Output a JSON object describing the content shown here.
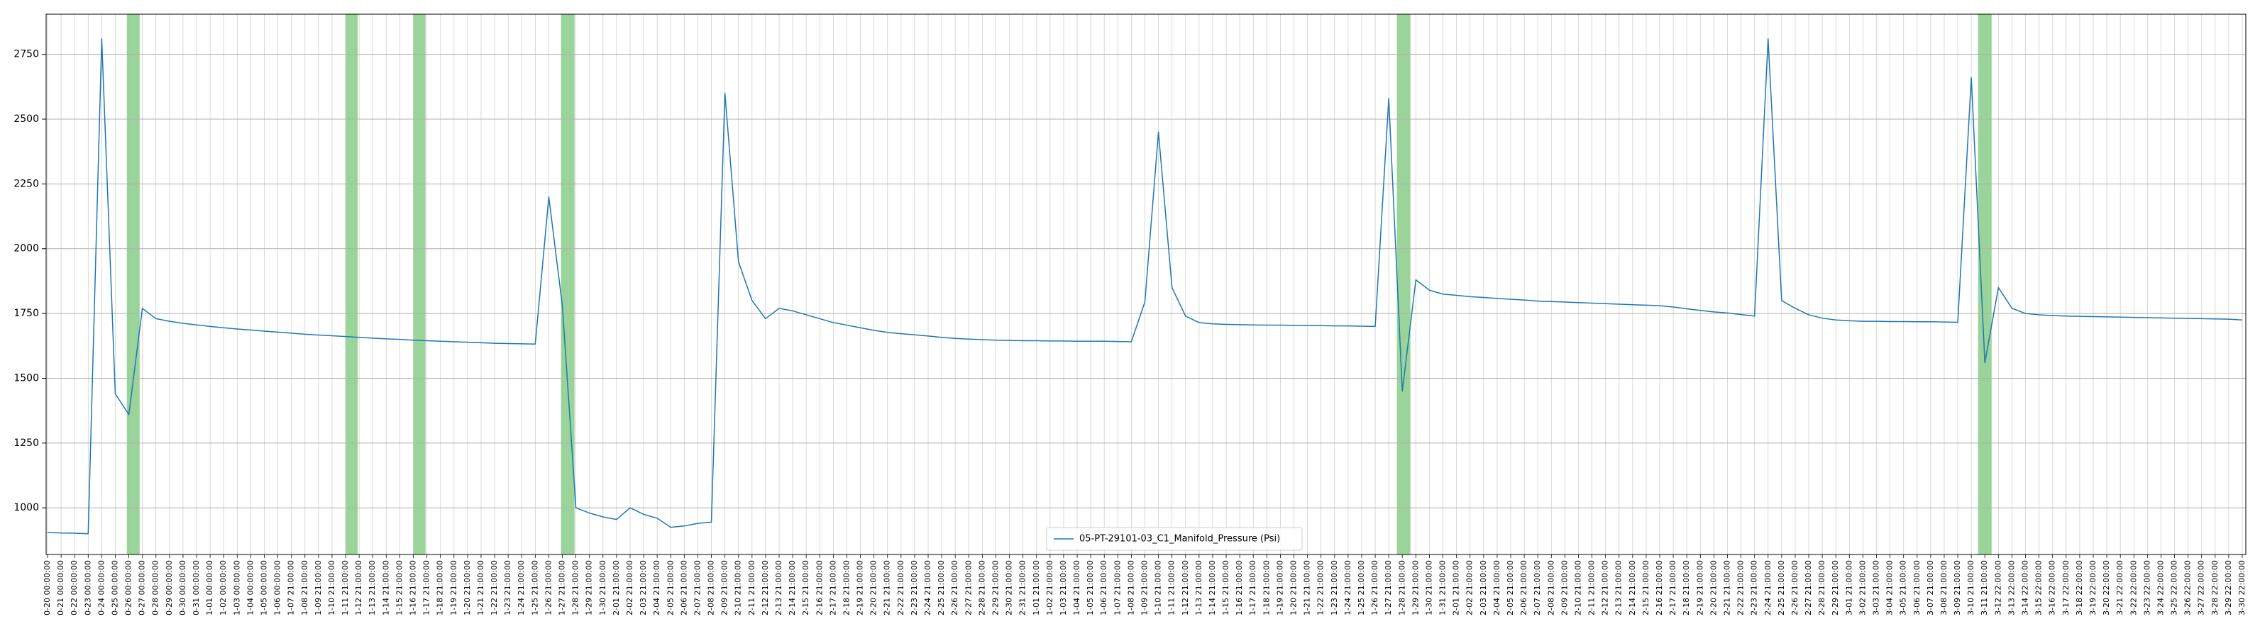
{
  "chart_data": {
    "type": "line",
    "categories": [
      "0-20 00:00:00",
      "0-21 00:00:00",
      "0-22 00:00:00",
      "0-23 00:00:00",
      "0-24 00:00:00",
      "0-25 00:00:00",
      "0-26 00:00:00",
      "0-27 00:00:00",
      "0-28 00:00:00",
      "0-29 00:00:00",
      "0-30 00:00:00",
      "0-31 00:00:00",
      "1-01 00:00:00",
      "1-02 00:00:00",
      "1-03 00:00:00",
      "1-04 00:00:00",
      "1-05 00:00:00",
      "1-06 00:00:00",
      "1-07 21:00:00",
      "1-08 21:00:00",
      "1-09 21:00:00",
      "1-10 21:00:00",
      "1-11 21:00:00",
      "1-12 21:00:00",
      "1-13 21:00:00",
      "1-14 21:00:00",
      "1-15 21:00:00",
      "1-16 21:00:00",
      "1-17 21:00:00",
      "1-18 21:00:00",
      "1-19 21:00:00",
      "1-20 21:00:00",
      "1-21 21:00:00",
      "1-22 21:00:00",
      "1-23 21:00:00",
      "1-24 21:00:00",
      "1-25 21:00:00",
      "1-26 21:00:00",
      "1-27 21:00:00",
      "1-28 21:00:00",
      "1-29 21:00:00",
      "1-30 21:00:00",
      "2-01 21:00:00",
      "2-02 21:00:00",
      "2-03 21:00:00",
      "2-04 21:00:00",
      "2-05 21:00:00",
      "2-06 21:00:00",
      "2-07 21:00:00",
      "2-08 21:00:00",
      "2-09 21:00:00",
      "2-10 21:00:00",
      "2-11 21:00:00",
      "2-12 21:00:00",
      "2-13 21:00:00",
      "2-14 21:00:00",
      "2-15 21:00:00",
      "2-16 21:00:00",
      "2-17 21:00:00",
      "2-18 21:00:00",
      "2-19 21:00:00",
      "2-20 21:00:00",
      "2-21 21:00:00",
      "2-22 21:00:00",
      "2-23 21:00:00",
      "2-24 21:00:00",
      "2-25 21:00:00",
      "2-26 21:00:00",
      "2-27 21:00:00",
      "2-28 21:00:00",
      "2-29 21:00:00",
      "2-30 21:00:00",
      "2-31 21:00:00",
      "1-01 21:00:00",
      "1-02 21:00:00",
      "1-03 21:00:00",
      "1-04 21:00:00",
      "1-05 21:00:00",
      "1-06 21:00:00",
      "1-07 21:00:00",
      "1-08 21:00:00",
      "1-09 21:00:00",
      "1-10 21:00:00",
      "1-11 21:00:00",
      "1-12 21:00:00",
      "1-13 21:00:00",
      "1-14 21:00:00",
      "1-15 21:00:00",
      "1-16 21:00:00",
      "1-17 21:00:00",
      "1-18 21:00:00",
      "1-19 21:00:00",
      "1-20 21:00:00",
      "1-21 21:00:00",
      "1-22 21:00:00",
      "1-23 21:00:00",
      "1-24 21:00:00",
      "1-25 21:00:00",
      "1-26 21:00:00",
      "1-27 21:00:00",
      "1-28 21:00:00",
      "1-29 21:00:00",
      "1-30 21:00:00",
      "1-31 21:00:00",
      "2-01 21:00:00",
      "2-02 21:00:00",
      "2-03 21:00:00",
      "2-04 21:00:00",
      "2-05 21:00:00",
      "2-06 21:00:00",
      "2-07 21:00:00",
      "2-08 21:00:00",
      "2-09 21:00:00",
      "2-10 21:00:00",
      "2-11 21:00:00",
      "2-12 21:00:00",
      "2-13 21:00:00",
      "2-14 21:00:00",
      "2-15 21:00:00",
      "2-16 21:00:00",
      "2-17 21:00:00",
      "2-18 21:00:00",
      "2-19 21:00:00",
      "2-20 21:00:00",
      "2-21 21:00:00",
      "2-22 21:00:00",
      "2-23 21:00:00",
      "2-24 21:00:00",
      "2-25 21:00:00",
      "2-26 21:00:00",
      "2-27 21:00:00",
      "2-28 21:00:00",
      "2-29 21:00:00",
      "3-01 21:00:00",
      "3-02 21:00:00",
      "3-03 21:00:00",
      "3-04 21:00:00",
      "3-05 21:00:00",
      "3-06 21:00:00",
      "3-07 21:00:00",
      "3-08 21:00:00",
      "3-09 21:00:00",
      "3-10 21:00:00",
      "3-11 21:00:00",
      "3-12 22:00:00",
      "3-13 22:00:00",
      "3-14 22:00:00",
      "3-15 22:00:00",
      "3-16 22:00:00",
      "3-17 22:00:00",
      "3-18 22:00:00",
      "3-19 22:00:00",
      "3-20 22:00:00",
      "3-21 22:00:00",
      "3-22 22:00:00",
      "3-23 22:00:00",
      "3-24 22:00:00",
      "3-25 22:00:00",
      "3-26 22:00:00",
      "3-27 22:00:00",
      "3-28 22:00:00",
      "3-29 22:00:00",
      "3-30 22:00:00"
    ],
    "series": [
      {
        "name": "05-PT-29101-03_C1_Manifold_Pressure (Psi)",
        "color": "#1f77b4",
        "values": [
          905,
          903,
          902,
          900,
          2810,
          1440,
          1360,
          1770,
          1730,
          1720,
          1712,
          1706,
          1700,
          1695,
          1690,
          1686,
          1682,
          1678,
          1674,
          1670,
          1667,
          1664,
          1661,
          1658,
          1655,
          1652,
          1650,
          1647,
          1645,
          1643,
          1641,
          1639,
          1637,
          1635,
          1634,
          1633,
          1632,
          2200,
          1780,
          1000,
          980,
          965,
          955,
          1000,
          975,
          960,
          925,
          930,
          940,
          945,
          2600,
          1950,
          1800,
          1730,
          1770,
          1760,
          1745,
          1730,
          1715,
          1705,
          1695,
          1685,
          1677,
          1672,
          1668,
          1663,
          1658,
          1654,
          1651,
          1649,
          1647,
          1646,
          1645,
          1645,
          1644,
          1644,
          1643,
          1643,
          1643,
          1642,
          1641,
          1795,
          2450,
          1850,
          1740,
          1715,
          1710,
          1708,
          1707,
          1706,
          1705,
          1705,
          1704,
          1703,
          1703,
          1702,
          1702,
          1701,
          1700,
          2580,
          1450,
          1880,
          1840,
          1825,
          1820,
          1815,
          1812,
          1808,
          1805,
          1802,
          1798,
          1796,
          1794,
          1792,
          1790,
          1788,
          1786,
          1784,
          1782,
          1780,
          1775,
          1768,
          1762,
          1756,
          1752,
          1746,
          1740,
          2810,
          1800,
          1770,
          1745,
          1732,
          1725,
          1722,
          1720,
          1720,
          1719,
          1719,
          1718,
          1718,
          1717,
          1716,
          2660,
          1560,
          1850,
          1770,
          1750,
          1745,
          1742,
          1740,
          1739,
          1738,
          1737,
          1736,
          1735,
          1734,
          1733,
          1732,
          1731,
          1730,
          1729,
          1728,
          1725
        ]
      }
    ],
    "ylim": [
      820,
      2905
    ],
    "yticks": [
      1000,
      1250,
      1500,
      1750,
      2000,
      2250,
      2500,
      2750
    ],
    "grid": true,
    "shaded_spans": [
      [
        5.85,
        6.8
      ],
      [
        22.0,
        22.9
      ],
      [
        27.0,
        27.9
      ],
      [
        37.9,
        38.9
      ],
      [
        99.6,
        100.6
      ],
      [
        142.5,
        143.5
      ]
    ],
    "shaded_color": "#8fcf8f",
    "legend": "lower center"
  }
}
